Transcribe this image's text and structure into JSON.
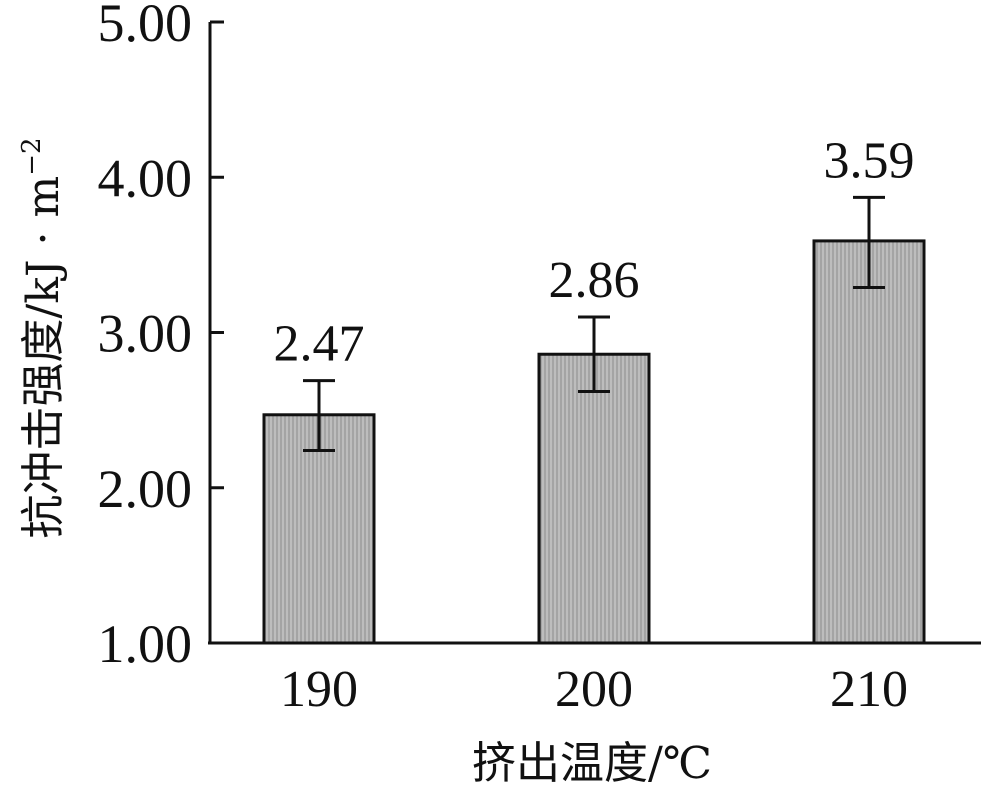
{
  "chart_data": {
    "type": "bar",
    "categories": [
      "190",
      "200",
      "210"
    ],
    "values": [
      2.47,
      2.86,
      3.59
    ],
    "error_bars": {
      "lower": [
        2.24,
        2.62,
        3.29
      ],
      "upper": [
        2.69,
        3.1,
        3.87
      ]
    },
    "data_labels": [
      "2.47",
      "2.86",
      "3.59"
    ],
    "ylim": [
      1.0,
      5.0
    ],
    "yticks": [
      1.0,
      2.0,
      3.0,
      4.0,
      5.0
    ],
    "ytick_labels": [
      "1.00",
      "2.00",
      "3.00",
      "4.00",
      "5.00"
    ],
    "xlabel": "挤出温度/℃",
    "ylabel": "抗冲击强度/kJ · m",
    "ylabel_superscript": "−2",
    "grid": false,
    "legend": "none",
    "bar_fill": "#b4b4b4",
    "bar_stroke": "#111111"
  }
}
